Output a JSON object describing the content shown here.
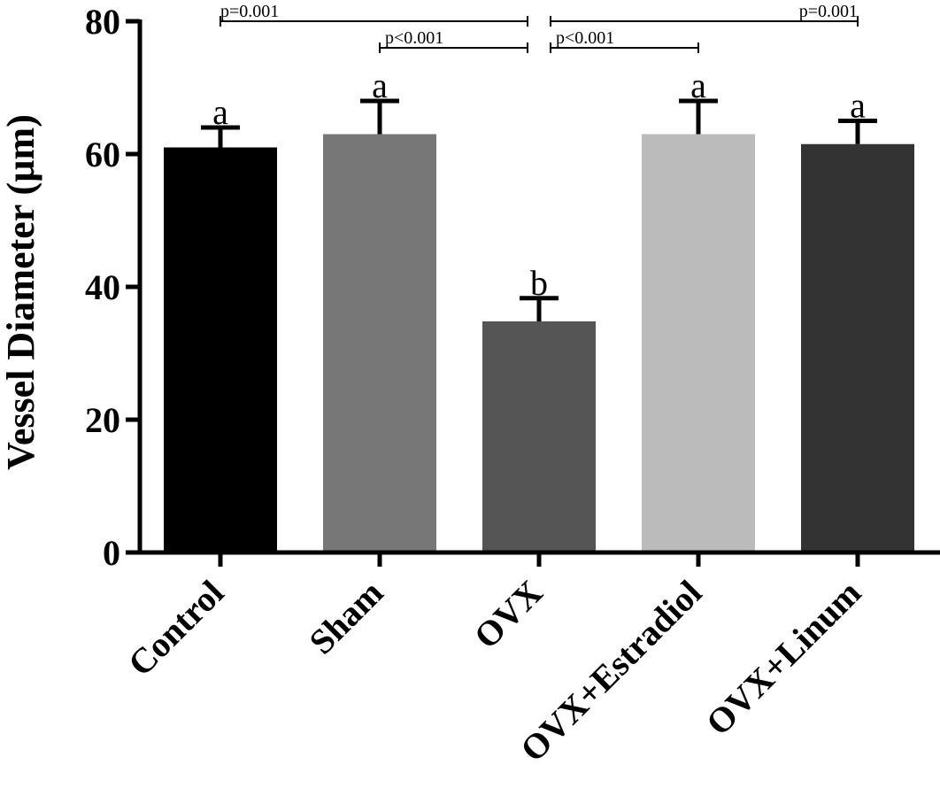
{
  "chart_data": {
    "type": "bar",
    "ylabel": "Vessel Diameter (µm)",
    "xlabel": "",
    "ylim": [
      0,
      80
    ],
    "yticks": [
      0,
      20,
      40,
      60,
      80
    ],
    "grid": false,
    "categories": [
      "Control",
      "Sham",
      "OVX",
      "OVX+Estradiol",
      "OVX+Linum"
    ],
    "values": [
      61,
      63,
      34.8,
      63,
      61.5
    ],
    "errors": [
      3,
      5,
      3.5,
      5,
      3.5
    ],
    "colors": [
      "#000000",
      "#777777",
      "#555555",
      "#bbbbbb",
      "#333333"
    ],
    "significance_letters": [
      "a",
      "a",
      "b",
      "a",
      "a"
    ],
    "comparisons": [
      {
        "from": 0,
        "to": 2,
        "label": "p=0.001",
        "level": 80
      },
      {
        "from": 1,
        "to": 2,
        "label": "p<0.001",
        "level": 76
      },
      {
        "from": 2,
        "to": 3,
        "label": "p<0.001",
        "level": 76
      },
      {
        "from": 2,
        "to": 4,
        "label": "p=0.001",
        "level": 80
      }
    ]
  }
}
